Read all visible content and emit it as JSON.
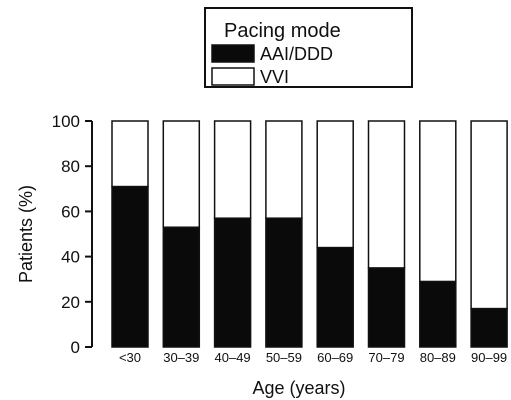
{
  "chart_data": {
    "type": "bar",
    "stacked": true,
    "categories": [
      "<30",
      "30–39",
      "40–49",
      "50–59",
      "60–69",
      "70–79",
      "80–89",
      "90–99"
    ],
    "series": [
      {
        "name": "AAI/DDD",
        "color": "#0a0a0a",
        "values": [
          71,
          53,
          57,
          57,
          44,
          35,
          29,
          17
        ]
      },
      {
        "name": "VVI",
        "color": "#ffffff",
        "values": [
          29,
          47,
          43,
          43,
          56,
          65,
          71,
          83
        ]
      }
    ],
    "xlabel": "Age (years)",
    "ylabel": "Patients (%)",
    "ylim": [
      0,
      100
    ],
    "yticks": [
      0,
      20,
      40,
      60,
      80,
      100
    ],
    "legend": {
      "title": "Pacing mode",
      "placement": "top-center"
    },
    "grid": false
  }
}
